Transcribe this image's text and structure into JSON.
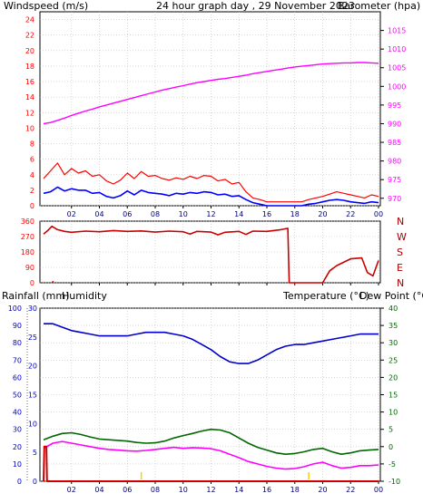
{
  "chart_data": [
    {
      "type": "line",
      "title": "24 hour graph day , 29 November 2023",
      "left_axis_label": "Windspeed (m/s)",
      "right_axis_label": "Barometer (hpa)",
      "x_ticks": [
        "02",
        "04",
        "06",
        "08",
        "10",
        "12",
        "14",
        "16",
        "18",
        "20",
        "22",
        "00"
      ],
      "x": [
        0,
        0.5,
        1,
        1.5,
        2,
        2.5,
        3,
        3.5,
        4,
        4.5,
        5,
        5.5,
        6,
        6.5,
        7,
        7.5,
        8,
        8.5,
        9,
        9.5,
        10,
        10.5,
        11,
        11.5,
        12,
        12.5,
        13,
        13.5,
        14,
        14.5,
        15,
        15.5,
        16,
        16.5,
        17,
        17.5,
        18,
        18.5,
        19,
        19.5,
        20,
        20.5,
        21,
        21.5,
        22,
        22.5,
        23,
        23.5,
        24
      ],
      "y_left_ticks": [
        0,
        2,
        4,
        6,
        8,
        10,
        12,
        14,
        16,
        18,
        20,
        22,
        24
      ],
      "y_left_range": [
        0,
        25
      ],
      "y_right_ticks": [
        970,
        975,
        980,
        985,
        990,
        995,
        1000,
        1005,
        1010,
        1015
      ],
      "y_right_range": [
        968,
        1020
      ],
      "grid": true,
      "colors": {
        "gust": "#ff0000",
        "wind": "#0000ff",
        "baro": "#ff00ff",
        "left_text": "#ff0000",
        "right_text": "#ff00ff",
        "title_text": "#ffcc00"
      },
      "series": [
        {
          "role": "gust",
          "axis": "left",
          "values": [
            3.5,
            4.5,
            5.5,
            4,
            4.8,
            4.2,
            4.5,
            3.8,
            4,
            3.2,
            2.8,
            3.3,
            4.2,
            3.5,
            4.4,
            3.8,
            3.9,
            3.5,
            3.3,
            3.6,
            3.4,
            3.8,
            3.5,
            3.9,
            3.8,
            3.2,
            3.4,
            2.8,
            3,
            1.8,
            1,
            0.8,
            0.5,
            0.5,
            0.5,
            0.5,
            0.5,
            0.5,
            0.8,
            1,
            1.2,
            1.5,
            1.8,
            1.6,
            1.4,
            1.2,
            1,
            1.4,
            1.2
          ]
        },
        {
          "role": "wind",
          "axis": "left",
          "values": [
            1.6,
            1.8,
            2.4,
            1.9,
            2.2,
            2,
            2,
            1.6,
            1.7,
            1.2,
            1,
            1.3,
            1.9,
            1.4,
            2,
            1.7,
            1.6,
            1.5,
            1.3,
            1.6,
            1.5,
            1.7,
            1.6,
            1.8,
            1.7,
            1.4,
            1.5,
            1.2,
            1.3,
            0.8,
            0.4,
            0.2,
            0,
            0,
            0,
            0,
            0,
            0,
            0.2,
            0.3,
            0.5,
            0.7,
            0.8,
            0.7,
            0.5,
            0.4,
            0.3,
            0.5,
            0.4
          ]
        },
        {
          "role": "barometer",
          "axis": "right",
          "values": [
            990,
            990.3,
            990.9,
            991.5,
            992.2,
            992.8,
            993.4,
            993.9,
            994.5,
            995,
            995.5,
            996,
            996.5,
            997,
            997.5,
            998,
            998.5,
            999,
            999.4,
            999.8,
            1000.2,
            1000.6,
            1001,
            1001.3,
            1001.6,
            1001.9,
            1002.1,
            1002.4,
            1002.7,
            1003,
            1003.4,
            1003.7,
            1004,
            1004.3,
            1004.6,
            1004.9,
            1005.2,
            1005.4,
            1005.6,
            1005.8,
            1006,
            1006.1,
            1006.2,
            1006.3,
            1006.3,
            1006.4,
            1006.4,
            1006.3,
            1006.2
          ]
        }
      ]
    },
    {
      "type": "line",
      "x_ticks": [
        "02",
        "04",
        "06",
        "08",
        "10",
        "12",
        "14",
        "16",
        "18",
        "20",
        "22",
        "00"
      ],
      "y_ticks": [
        0,
        90,
        180,
        270,
        360
      ],
      "y_range": [
        0,
        360
      ],
      "compass": [
        "N",
        "W",
        "S",
        "E",
        "N"
      ],
      "grid": true,
      "colors": {
        "direction": "#cc0000",
        "left_text": "#ff0000",
        "compass_text": "#aa0000"
      },
      "series": [
        {
          "role": "wind_direction",
          "points": [
            [
              0,
              285
            ],
            [
              0.3,
              305
            ],
            [
              0.6,
              330
            ],
            [
              1,
              310
            ],
            [
              1.5,
              300
            ],
            [
              2,
              295
            ],
            [
              3,
              302
            ],
            [
              4,
              298
            ],
            [
              5,
              305
            ],
            [
              6,
              300
            ],
            [
              7,
              303
            ],
            [
              8,
              296
            ],
            [
              9,
              302
            ],
            [
              10,
              298
            ],
            [
              10.5,
              285
            ],
            [
              11,
              300
            ],
            [
              12,
              296
            ],
            [
              12.5,
              280
            ],
            [
              13,
              295
            ],
            [
              14,
              300
            ],
            [
              14.5,
              282
            ],
            [
              15,
              302
            ],
            [
              16,
              300
            ],
            [
              17,
              310
            ],
            [
              17.5,
              318
            ],
            [
              17.6,
              0
            ],
            [
              18,
              0
            ],
            [
              19,
              0
            ],
            [
              20,
              0
            ],
            [
              20.5,
              70
            ],
            [
              21,
              100
            ],
            [
              22,
              140
            ],
            [
              22.8,
              145
            ],
            [
              23.2,
              60
            ],
            [
              23.6,
              40
            ],
            [
              24,
              130
            ]
          ]
        },
        {
          "role": "wind_direction_gap",
          "points": [
            [
              0.6,
              0
            ],
            [
              0.7,
              10
            ]
          ]
        }
      ]
    },
    {
      "type": "line",
      "left_axis_label": "Rainfall (mm)",
      "left_axis_label2": "Humidity",
      "right_axis_label": "Temperature (°C)",
      "right_axis_label2": "Dew Point (°C)",
      "x_ticks": [
        "02",
        "04",
        "06",
        "08",
        "10",
        "12",
        "14",
        "16",
        "18",
        "20",
        "22",
        "00"
      ],
      "y_humidity_ticks": [
        0,
        10,
        20,
        30,
        40,
        50,
        60,
        70,
        80,
        90,
        100
      ],
      "y_humidity_range": [
        0,
        100
      ],
      "y_rain_ticks": [
        0,
        5,
        10,
        15,
        20,
        25,
        30
      ],
      "y_rain_range": [
        0,
        30
      ],
      "y_temp_ticks": [
        -10,
        -5,
        0,
        5,
        10,
        15,
        20,
        25,
        30,
        35,
        40
      ],
      "y_temp_range": [
        -10,
        40
      ],
      "grid": true,
      "colors": {
        "rain": "#cc0000",
        "humidity": "#0000cc",
        "temperature": "#006600",
        "dewpoint": "#ff00ff",
        "rain_text": "#ff0000",
        "humidity_text": "#0000ff",
        "humidity_ticks": "#0000cc",
        "temp_text": "#006600",
        "dew_text": "#ff00ff",
        "marker": "#ffcc00"
      },
      "series": [
        {
          "role": "humidity",
          "axis": "humidity",
          "values": [
            91,
            91,
            89,
            87,
            86,
            85,
            84,
            84,
            84,
            84,
            85,
            86,
            86,
            86,
            85,
            84,
            82,
            79,
            76,
            72,
            69,
            68,
            68,
            70,
            73,
            76,
            78,
            79,
            79,
            80,
            81,
            82,
            83,
            84,
            85,
            85,
            85
          ]
        },
        {
          "role": "temperature",
          "axis": "temp",
          "values": [
            2,
            3,
            3.8,
            4,
            3.5,
            2.8,
            2.2,
            2,
            1.8,
            1.6,
            1.2,
            1,
            1.1,
            1.6,
            2.5,
            3.2,
            3.8,
            4.5,
            5,
            4.8,
            4,
            2.5,
            1,
            -0.2,
            -1,
            -1.8,
            -2.2,
            -2,
            -1.5,
            -0.8,
            -0.5,
            -1.5,
            -2.2,
            -1.8,
            -1.2,
            -1,
            -0.8
          ]
        },
        {
          "role": "dewpoint",
          "axis": "temp",
          "values": [
            -0.5,
            1,
            1.5,
            1,
            0.5,
            0,
            -0.5,
            -0.8,
            -1,
            -1.2,
            -1.3,
            -1.1,
            -0.8,
            -0.5,
            -0.2,
            -0.5,
            -0.3,
            -0.4,
            -0.6,
            -1.2,
            -2.2,
            -3.2,
            -4.3,
            -5,
            -5.7,
            -6.2,
            -6.5,
            -6.3,
            -5.8,
            -5,
            -4.5,
            -5.5,
            -6.2,
            -6,
            -5.5,
            -5.5,
            -5.3
          ]
        },
        {
          "role": "rainfall",
          "axis": "rain",
          "points": [
            [
              0,
              0
            ],
            [
              0.05,
              6
            ],
            [
              0.2,
              6
            ],
            [
              0.25,
              0
            ],
            [
              24,
              0
            ]
          ]
        }
      ],
      "markers_x": [
        7,
        19
      ]
    }
  ]
}
